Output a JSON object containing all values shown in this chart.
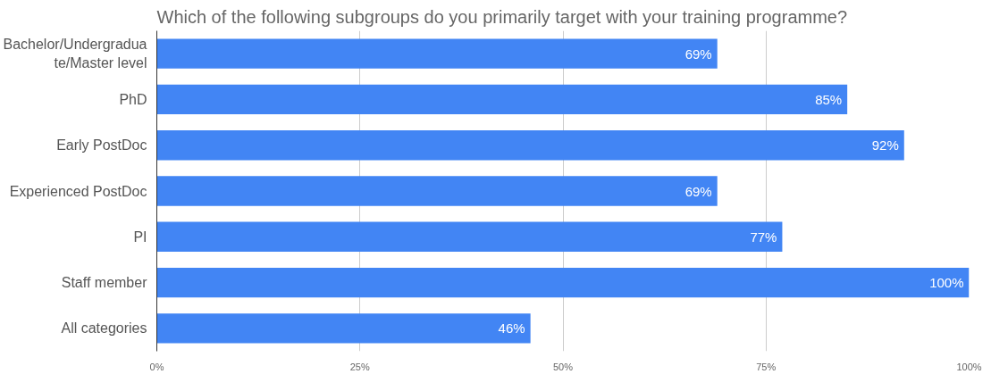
{
  "chart_data": {
    "type": "bar",
    "orientation": "horizontal",
    "title": "Which of the following subgroups do you primarily target with your training programme?",
    "categories": [
      "Bachelor/Undergraduate/Master level",
      "PhD",
      "Early PostDoc",
      "Experienced PostDoc",
      "PI",
      "Staff member",
      "All categories"
    ],
    "values": [
      69,
      85,
      92,
      69,
      77,
      100,
      46
    ],
    "value_labels": [
      "69%",
      "85%",
      "92%",
      "69%",
      "77%",
      "100%",
      "46%"
    ],
    "color": "#4285f4",
    "xlim": [
      0,
      100
    ],
    "xticks": [
      {
        "value": 0,
        "label": "0%"
      },
      {
        "value": 25,
        "label": "25%"
      },
      {
        "value": 50,
        "label": "50%"
      },
      {
        "value": 75,
        "label": "75%"
      },
      {
        "value": 100,
        "label": "100%"
      }
    ],
    "grid": "x"
  }
}
